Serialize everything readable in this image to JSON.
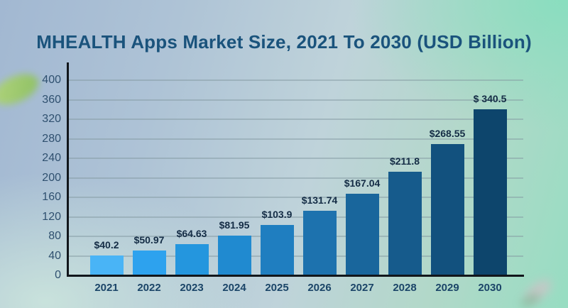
{
  "title": "MHEALTH Apps Market Size, 2021 To 2030 (USD Billion)",
  "chart_data": {
    "type": "bar",
    "title": "MHEALTH Apps Market Size, 2021 To 2030 (USD Billion)",
    "categories": [
      "2021",
      "2022",
      "2023",
      "2024",
      "2025",
      "2026",
      "2027",
      "2028",
      "2029",
      "2030"
    ],
    "values": [
      40.2,
      50.97,
      64.63,
      81.95,
      103.9,
      131.74,
      167.04,
      211.8,
      268.55,
      340.5
    ],
    "value_labels": [
      "$40.2",
      "$50.97",
      "$64.63",
      "$81.95",
      "$103.9",
      "$131.74",
      "$167.04",
      "$211.8",
      "$268.55",
      "$ 340.5"
    ],
    "bar_colors": [
      "#49b4f6",
      "#2da2ee",
      "#2496de",
      "#208ad0",
      "#1f7ec0",
      "#1d72ae",
      "#19669c",
      "#165b8c",
      "#12517e",
      "#0d456c"
    ],
    "xlabel": "",
    "ylabel": "",
    "ylim": [
      0,
      400
    ],
    "yticks": [
      0,
      40,
      80,
      120,
      160,
      200,
      240,
      280,
      320,
      360,
      400
    ],
    "grid": true,
    "legend": "none"
  },
  "colors": {
    "title_text": "#1a537c",
    "axis_line": "#11161b",
    "gridline": "rgba(132,153,162,0.5)",
    "y_tick_text": "#2f506f",
    "x_tick_text": "#1b4568",
    "value_label_text": "#142c45"
  }
}
